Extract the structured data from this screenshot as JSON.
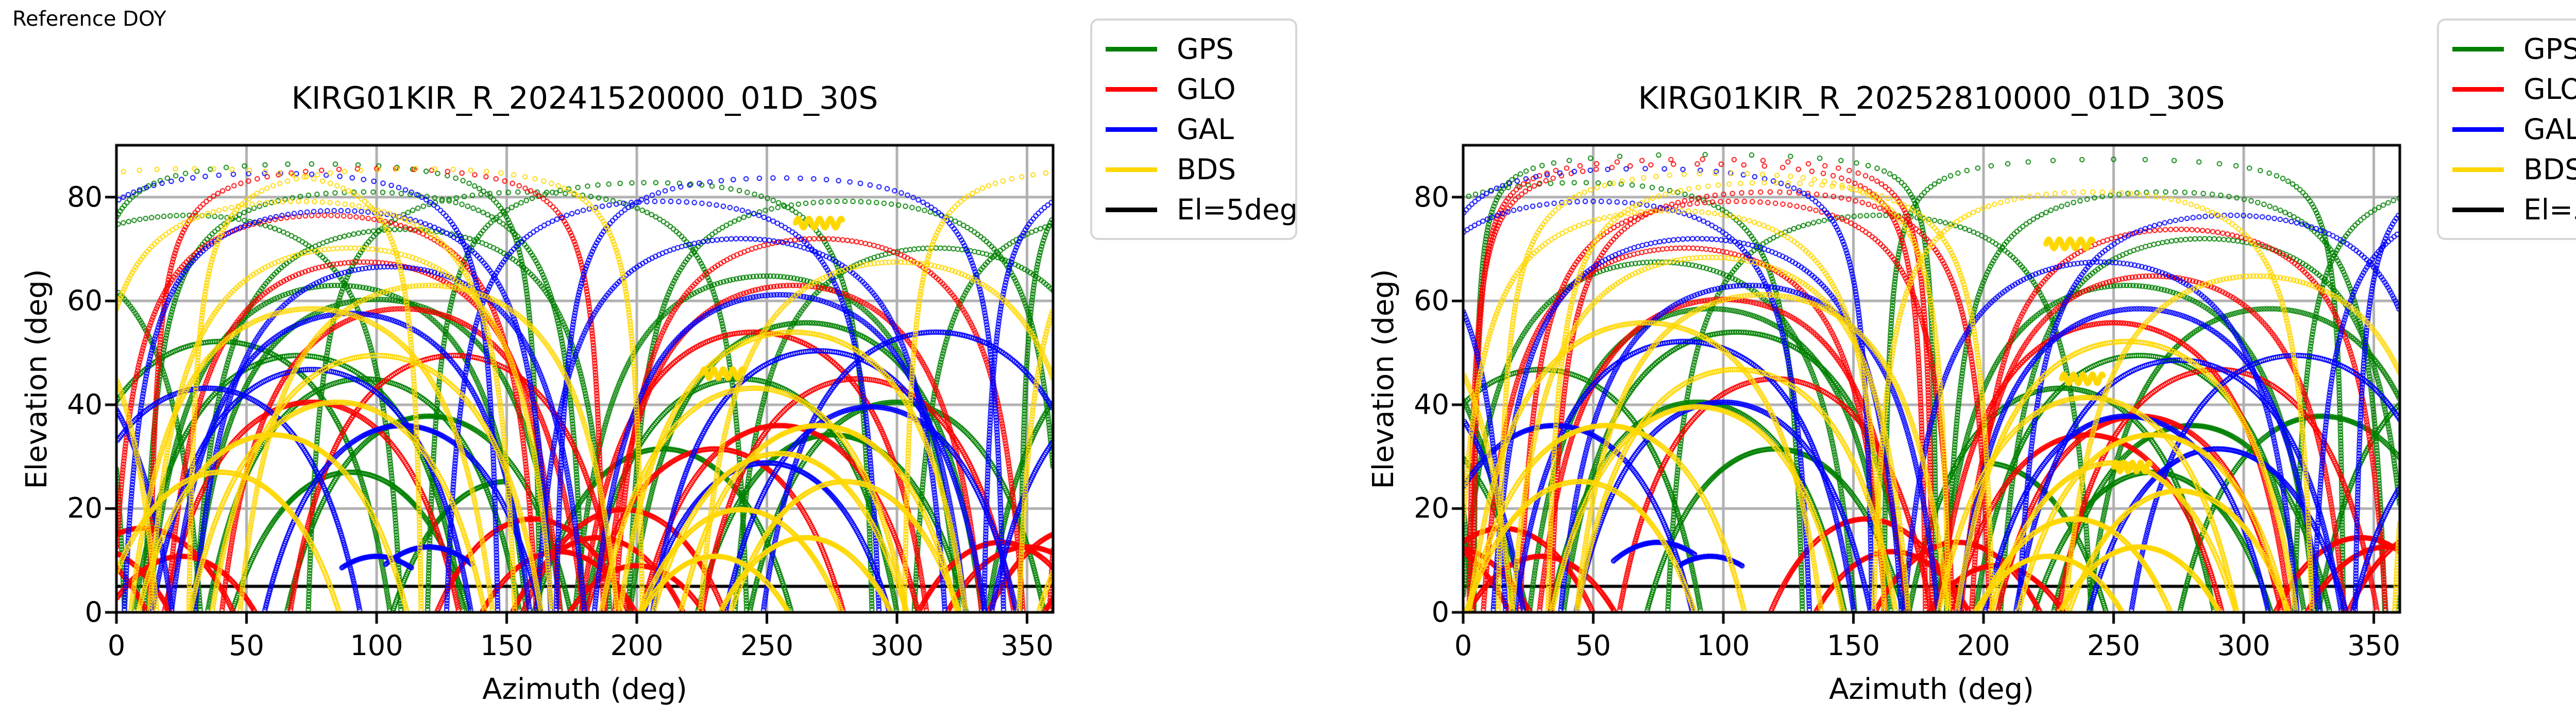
{
  "page": {
    "reference_label": "Reference DOY",
    "background": "#ffffff"
  },
  "style": {
    "grid_color": "#b0b0b0",
    "spine_color": "#000000",
    "elevation_cutoff_color": "#000000",
    "legend_border_color": "#d7d7d7",
    "marker": "open-circle"
  },
  "legend": {
    "position": "outside-top-right",
    "entries": [
      {
        "label": "GPS",
        "color": "#008000"
      },
      {
        "label": "GLO",
        "color": "#ff0000"
      },
      {
        "label": "GAL",
        "color": "#0000ff"
      },
      {
        "label": "BDS",
        "color": "#ffd700"
      },
      {
        "label": "El=5deg",
        "color": "#000000"
      }
    ]
  },
  "axes": {
    "xlabel": "Azimuth (deg)",
    "ylabel": "Elevation (deg)",
    "xlim": [
      0,
      360
    ],
    "ylim": [
      0,
      90
    ],
    "xticks": [
      0,
      50,
      100,
      150,
      200,
      250,
      300,
      350
    ],
    "yticks": [
      0,
      20,
      40,
      60,
      80
    ],
    "grid": true,
    "elevation_cutoff_deg": 5
  },
  "chart_data": [
    {
      "type": "scatter",
      "title": "KIRG01KIR_R_20241520000_01D_30S",
      "xlabel": "Azimuth (deg)",
      "ylabel": "Elevation (deg)",
      "xlim": [
        0,
        360
      ],
      "ylim": [
        0,
        90
      ],
      "grid": true,
      "elevation_cutoff_deg": 5,
      "pass_format": "[closest_approach_frac_d, peak_azimuth_deg, t_start?, t_end?] ; track: p(t)=chord across unit sky disk, el=90*(1-|p|), az=atan2(px,py)",
      "geo_format": "[center_azimuth_deg, elevation_deg, half_width_deg] stationary-satellite bar",
      "series": [
        {
          "name": "GPS",
          "color": "#008000",
          "passes": [
            [
              0.04,
              75
            ],
            [
              0.1,
              95
            ],
            [
              0.18,
              110
            ],
            [
              0.3,
              85
            ],
            [
              0.33,
              100
            ],
            [
              0.45,
              70
            ],
            [
              0.5,
              95
            ],
            [
              0.58,
              120
            ],
            [
              0.28,
              250
            ],
            [
              0.38,
              265
            ],
            [
              0.12,
              280
            ],
            [
              0.5,
              240
            ],
            [
              0.62,
              275
            ],
            [
              0.7,
              90
            ],
            [
              0.55,
              300
            ],
            [
              0.42,
              40
            ],
            [
              0.65,
              210
            ],
            [
              0.22,
              315
            ],
            [
              0.08,
              205
            ],
            [
              0.1,
              158
            ],
            [
              0.15,
              28
            ],
            [
              0.72,
              150,
              0.0,
              0.5
            ]
          ]
        },
        {
          "name": "GLO",
          "color": "#ff0000",
          "passes": [
            [
              0.05,
              100
            ],
            [
              0.15,
              80
            ],
            [
              0.25,
              95
            ],
            [
              0.35,
              110
            ],
            [
              0.3,
              260
            ],
            [
              0.4,
              245
            ],
            [
              0.2,
              270
            ],
            [
              0.5,
              285
            ],
            [
              0.55,
              75
            ],
            [
              0.6,
              255
            ],
            [
              0.82,
              10
            ],
            [
              0.86,
              350
            ],
            [
              0.88,
              25
            ],
            [
              0.84,
              185
            ],
            [
              0.87,
              170
            ],
            [
              0.9,
              200
            ],
            [
              0.8,
              160
            ],
            [
              0.85,
              340
            ],
            [
              0.45,
              130
            ],
            [
              0.65,
              230
            ],
            [
              0.78,
              195
            ]
          ]
        },
        {
          "name": "GAL",
          "color": "#0000ff",
          "passes": [
            [
              0.06,
              60
            ],
            [
              0.14,
              85
            ],
            [
              0.26,
              105
            ],
            [
              0.36,
              90
            ],
            [
              0.48,
              75
            ],
            [
              0.32,
              255
            ],
            [
              0.2,
              240
            ],
            [
              0.44,
              270
            ],
            [
              0.56,
              290
            ],
            [
              0.6,
              110
            ],
            [
              0.68,
              250
            ],
            [
              0.4,
              315
            ],
            [
              0.52,
              35
            ],
            [
              0.07,
              255
            ],
            [
              0.12,
              210
            ],
            [
              0.88,
              100,
              0.28,
              0.72
            ],
            [
              0.86,
              120,
              0.25,
              0.75
            ]
          ]
        },
        {
          "name": "BDS",
          "color": "#ffd700",
          "passes": [
            [
              0.05,
              115
            ],
            [
              0.12,
              70
            ],
            [
              0.22,
              90
            ],
            [
              0.3,
              120
            ],
            [
              0.35,
              75
            ],
            [
              0.45,
              100
            ],
            [
              0.55,
              85
            ],
            [
              0.4,
              260
            ],
            [
              0.52,
              245
            ],
            [
              0.6,
              270
            ],
            [
              0.66,
              255
            ],
            [
              0.72,
              280
            ],
            [
              0.78,
              240
            ],
            [
              0.84,
              265
            ],
            [
              0.88,
              230
            ],
            [
              0.62,
              60
            ],
            [
              0.25,
              300
            ],
            [
              0.7,
              40
            ],
            [
              0.05,
              30
            ]
          ],
          "geo": [
            [
              270,
              75,
              9
            ],
            [
              233,
              46,
              8
            ]
          ]
        }
      ]
    },
    {
      "type": "scatter",
      "title": "KIRG01KIR_R_20252810000_01D_30S",
      "xlabel": "Azimuth (deg)",
      "ylabel": "Elevation (deg)",
      "xlim": [
        0,
        360
      ],
      "ylim": [
        0,
        90
      ],
      "grid": true,
      "elevation_cutoff_deg": 5,
      "pass_format": "[closest_approach_frac_d, peak_azimuth_deg, t_start?, t_end?] ; track: p(t)=chord across unit sky disk, el=90*(1-|p|), az=atan2(px,py)",
      "geo_format": "[center_azimuth_deg, elevation_deg, half_width_deg] stationary-satellite bar",
      "series": [
        {
          "name": "GPS",
          "color": "#008000",
          "passes": [
            [
              0.03,
              250
            ],
            [
              0.1,
              270
            ],
            [
              0.2,
              285
            ],
            [
              0.3,
              255
            ],
            [
              0.35,
              95
            ],
            [
              0.45,
              260
            ],
            [
              0.52,
              230
            ],
            [
              0.6,
              280
            ],
            [
              0.25,
              75
            ],
            [
              0.4,
              105
            ],
            [
              0.55,
              90
            ],
            [
              0.65,
              120
            ],
            [
              0.7,
              265
            ],
            [
              0.15,
              160
            ],
            [
              0.02,
              93
            ],
            [
              0.35,
              310
            ],
            [
              0.48,
              30
            ],
            [
              0.58,
              330
            ],
            [
              0.08,
              45
            ],
            [
              0.68,
              200,
              0.5,
              1.0
            ]
          ]
        },
        {
          "name": "GLO",
          "color": "#ff0000",
          "passes": [
            [
              0.04,
              90
            ],
            [
              0.12,
              105
            ],
            [
              0.22,
              85
            ],
            [
              0.33,
              100
            ],
            [
              0.28,
              265
            ],
            [
              0.38,
              250
            ],
            [
              0.18,
              275
            ],
            [
              0.48,
              290
            ],
            [
              0.58,
              260
            ],
            [
              0.03,
              92
            ],
            [
              0.1,
              118
            ],
            [
              0.82,
              15
            ],
            [
              0.86,
              355
            ],
            [
              0.88,
              30
            ],
            [
              0.85,
              190
            ],
            [
              0.87,
              165
            ],
            [
              0.9,
              205
            ],
            [
              0.8,
              155
            ],
            [
              0.84,
              345
            ],
            [
              0.5,
              120
            ],
            [
              0.62,
              240
            ]
          ]
        },
        {
          "name": "GAL",
          "color": "#0000ff",
          "passes": [
            [
              0.05,
              70
            ],
            [
              0.12,
              50
            ],
            [
              0.2,
              90
            ],
            [
              0.3,
              110
            ],
            [
              0.42,
              85
            ],
            [
              0.35,
              260
            ],
            [
              0.25,
              245
            ],
            [
              0.46,
              275
            ],
            [
              0.58,
              255
            ],
            [
              0.55,
              100
            ],
            [
              0.65,
              290
            ],
            [
              0.45,
              320
            ],
            [
              0.15,
              295
            ],
            [
              0.6,
              35
            ],
            [
              0.88,
              95,
              0.3,
              0.7
            ],
            [
              0.85,
              75,
              0.25,
              0.7
            ]
          ]
        },
        {
          "name": "BDS",
          "color": "#ffd700",
          "passes": [
            [
              0.06,
              100
            ],
            [
              0.14,
              80
            ],
            [
              0.24,
              95
            ],
            [
              0.32,
              115
            ],
            [
              0.38,
              70
            ],
            [
              0.48,
              105
            ],
            [
              0.56,
              90
            ],
            [
              0.42,
              255
            ],
            [
              0.54,
              240
            ],
            [
              0.62,
              265
            ],
            [
              0.68,
              250
            ],
            [
              0.74,
              275
            ],
            [
              0.8,
              235
            ],
            [
              0.86,
              260
            ],
            [
              0.6,
              55
            ],
            [
              0.28,
              305
            ],
            [
              0.72,
              45
            ],
            [
              0.88,
              225
            ],
            [
              0.08,
              118
            ],
            [
              0.1,
              242
            ]
          ],
          "geo": [
            [
              233,
              71,
              9
            ],
            [
              238,
              45,
              8
            ],
            [
              257,
              28,
              7
            ]
          ]
        }
      ]
    }
  ]
}
